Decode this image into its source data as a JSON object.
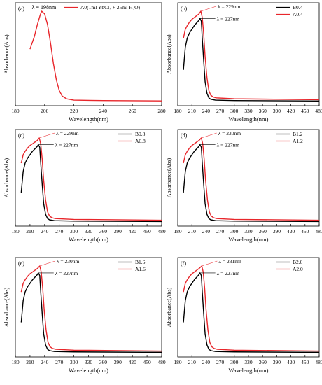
{
  "chart_data": [
    {
      "panel": "(a)",
      "type": "line",
      "xlabel": "Wavelength(nm)",
      "ylabel": "Absorbance(Abs)",
      "xlim": [
        180,
        280
      ],
      "xticks": [
        180,
        200,
        220,
        240,
        260,
        280
      ],
      "series": [
        {
          "name": "A0(1ml YbCl₃ + 25ml H₂O)",
          "color": "#e8262b",
          "x": [
            190,
            193,
            195,
            197,
            198,
            200,
            202,
            204,
            206,
            208,
            210,
            212,
            215,
            220,
            240,
            260,
            280
          ],
          "y": [
            0.58,
            0.72,
            0.85,
            0.96,
            1.0,
            0.97,
            0.85,
            0.65,
            0.42,
            0.24,
            0.12,
            0.06,
            0.03,
            0.015,
            0.01,
            0.008,
            0.006
          ]
        }
      ],
      "annotations": [
        {
          "text": "λ = 198nm",
          "x": 198,
          "y": 1.0
        }
      ]
    },
    {
      "panel": "(b)",
      "type": "line",
      "xlabel": "Wavelength(nm)",
      "ylabel": "Absorbance(Abs)",
      "xlim": [
        180,
        480
      ],
      "xticks": [
        180,
        210,
        240,
        270,
        300,
        330,
        360,
        390,
        420,
        450,
        480
      ],
      "series": [
        {
          "name": "B0.4",
          "color": "#000000",
          "x": [
            192,
            196,
            200,
            205,
            210,
            215,
            220,
            225,
            227,
            230,
            232,
            235,
            238,
            242,
            246,
            250,
            260,
            300,
            480
          ],
          "y": [
            0.35,
            0.6,
            0.7,
            0.76,
            0.8,
            0.84,
            0.87,
            0.9,
            0.92,
            0.89,
            0.7,
            0.45,
            0.22,
            0.09,
            0.04,
            0.025,
            0.015,
            0.01,
            0.005
          ]
        },
        {
          "name": "A0.4",
          "color": "#e8262b",
          "x": [
            192,
            196,
            200,
            205,
            210,
            215,
            220,
            225,
            229,
            232,
            235,
            238,
            242,
            246,
            250,
            255,
            262,
            300,
            480
          ],
          "y": [
            0.7,
            0.8,
            0.84,
            0.88,
            0.91,
            0.93,
            0.95,
            0.97,
            1.0,
            0.93,
            0.75,
            0.5,
            0.26,
            0.12,
            0.07,
            0.05,
            0.04,
            0.03,
            0.02
          ]
        }
      ],
      "annotations": [
        {
          "text": "λ = 229nm",
          "x": 229,
          "y": 1.0
        },
        {
          "text": "λ = 227nm",
          "x": 227,
          "y": 0.92
        }
      ]
    },
    {
      "panel": "(c)",
      "type": "line",
      "xlabel": "Wavelength(nm)",
      "ylabel": "Absorbance(Abs)",
      "xlim": [
        180,
        480
      ],
      "xticks": [
        180,
        210,
        240,
        270,
        300,
        330,
        360,
        390,
        420,
        450,
        480
      ],
      "series": [
        {
          "name": "B0.8",
          "color": "#000000",
          "x": [
            192,
            196,
            200,
            205,
            210,
            215,
            220,
            225,
            227,
            230,
            232,
            235,
            238,
            242,
            246,
            250,
            260,
            300,
            480
          ],
          "y": [
            0.35,
            0.6,
            0.7,
            0.76,
            0.8,
            0.84,
            0.87,
            0.9,
            0.92,
            0.89,
            0.7,
            0.45,
            0.22,
            0.09,
            0.04,
            0.025,
            0.015,
            0.01,
            0.005
          ]
        },
        {
          "name": "A0.8",
          "color": "#e8262b",
          "x": [
            192,
            196,
            200,
            205,
            210,
            215,
            220,
            225,
            229,
            232,
            235,
            238,
            242,
            246,
            250,
            255,
            262,
            300,
            480
          ],
          "y": [
            0.7,
            0.8,
            0.84,
            0.88,
            0.91,
            0.93,
            0.95,
            0.97,
            1.0,
            0.93,
            0.75,
            0.5,
            0.26,
            0.12,
            0.07,
            0.05,
            0.04,
            0.03,
            0.02
          ]
        }
      ],
      "annotations": [
        {
          "text": "λ = 229nm",
          "x": 229,
          "y": 1.0
        },
        {
          "text": "λ = 227nm",
          "x": 227,
          "y": 0.92
        }
      ]
    },
    {
      "panel": "(d)",
      "type": "line",
      "xlabel": "Wavelength(nm)",
      "ylabel": "Absorbance(Abs)",
      "xlim": [
        180,
        480
      ],
      "xticks": [
        180,
        210,
        240,
        270,
        300,
        330,
        360,
        390,
        420,
        450,
        480
      ],
      "series": [
        {
          "name": "B1.2",
          "color": "#000000",
          "x": [
            192,
            196,
            200,
            205,
            210,
            215,
            220,
            225,
            227,
            230,
            232,
            235,
            238,
            242,
            246,
            250,
            260,
            300,
            480
          ],
          "y": [
            0.35,
            0.6,
            0.7,
            0.76,
            0.8,
            0.84,
            0.87,
            0.9,
            0.92,
            0.89,
            0.7,
            0.45,
            0.22,
            0.09,
            0.04,
            0.025,
            0.015,
            0.01,
            0.005
          ]
        },
        {
          "name": "A1.2",
          "color": "#e8262b",
          "x": [
            192,
            196,
            200,
            205,
            210,
            215,
            220,
            225,
            230,
            233,
            236,
            239,
            243,
            247,
            251,
            256,
            263,
            300,
            480
          ],
          "y": [
            0.7,
            0.8,
            0.84,
            0.88,
            0.91,
            0.93,
            0.95,
            0.97,
            1.0,
            0.93,
            0.75,
            0.5,
            0.26,
            0.12,
            0.07,
            0.05,
            0.04,
            0.03,
            0.02
          ]
        }
      ],
      "annotations": [
        {
          "text": "λ = 230nm",
          "x": 230,
          "y": 1.0
        },
        {
          "text": "λ = 227nm",
          "x": 227,
          "y": 0.92
        }
      ]
    },
    {
      "panel": "(e)",
      "type": "line",
      "xlabel": "Wavelength(nm)",
      "ylabel": "Absorbance(Abs)",
      "xlim": [
        180,
        480
      ],
      "xticks": [
        180,
        210,
        240,
        270,
        300,
        330,
        360,
        390,
        420,
        450,
        480
      ],
      "series": [
        {
          "name": "B1.6",
          "color": "#000000",
          "x": [
            192,
            196,
            200,
            205,
            210,
            215,
            220,
            225,
            227,
            230,
            232,
            235,
            238,
            242,
            246,
            250,
            260,
            300,
            480
          ],
          "y": [
            0.35,
            0.6,
            0.7,
            0.76,
            0.8,
            0.84,
            0.87,
            0.9,
            0.92,
            0.89,
            0.7,
            0.45,
            0.22,
            0.09,
            0.04,
            0.025,
            0.015,
            0.01,
            0.005
          ]
        },
        {
          "name": "A1.6",
          "color": "#e8262b",
          "x": [
            192,
            196,
            200,
            205,
            210,
            215,
            220,
            225,
            230,
            233,
            236,
            239,
            243,
            247,
            251,
            256,
            263,
            300,
            480
          ],
          "y": [
            0.7,
            0.8,
            0.84,
            0.88,
            0.91,
            0.93,
            0.95,
            0.97,
            1.0,
            0.93,
            0.75,
            0.5,
            0.26,
            0.12,
            0.07,
            0.05,
            0.04,
            0.03,
            0.02
          ]
        }
      ],
      "annotations": [
        {
          "text": "λ = 230nm",
          "x": 230,
          "y": 1.0
        },
        {
          "text": "λ = 227nm",
          "x": 227,
          "y": 0.92
        }
      ]
    },
    {
      "panel": "(f)",
      "type": "line",
      "xlabel": "Wavelength(nm)",
      "ylabel": "Absorbance(Abs)",
      "xlim": [
        180,
        480
      ],
      "xticks": [
        180,
        210,
        240,
        270,
        300,
        330,
        360,
        390,
        420,
        450,
        480
      ],
      "series": [
        {
          "name": "B2.0",
          "color": "#000000",
          "x": [
            192,
            196,
            200,
            205,
            210,
            215,
            220,
            225,
            227,
            230,
            232,
            235,
            238,
            242,
            246,
            250,
            260,
            300,
            480
          ],
          "y": [
            0.35,
            0.6,
            0.7,
            0.76,
            0.8,
            0.84,
            0.87,
            0.9,
            0.92,
            0.89,
            0.7,
            0.45,
            0.22,
            0.09,
            0.04,
            0.025,
            0.015,
            0.01,
            0.005
          ]
        },
        {
          "name": "A2.0",
          "color": "#e8262b",
          "x": [
            192,
            196,
            200,
            205,
            210,
            215,
            220,
            225,
            231,
            234,
            237,
            240,
            244,
            248,
            252,
            257,
            264,
            300,
            480
          ],
          "y": [
            0.7,
            0.8,
            0.84,
            0.88,
            0.91,
            0.93,
            0.95,
            0.97,
            1.0,
            0.93,
            0.75,
            0.5,
            0.26,
            0.12,
            0.07,
            0.05,
            0.04,
            0.03,
            0.02
          ]
        }
      ],
      "annotations": [
        {
          "text": "λ = 231nm",
          "x": 231,
          "y": 1.0
        },
        {
          "text": "λ = 227nm",
          "x": 227,
          "y": 0.92
        }
      ]
    }
  ]
}
